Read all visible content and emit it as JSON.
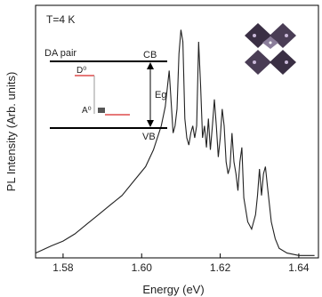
{
  "chart_data": {
    "type": "line",
    "xlabel": "Energy (eV)",
    "ylabel": "PL Intensity (Arb. units)",
    "xlim": [
      1.573,
      1.645
    ],
    "ylim": [
      0,
      1
    ],
    "x_ticks": [
      "1.58",
      "1.60",
      "1.62",
      "1.64"
    ],
    "x_tick_values": [
      1.58,
      1.6,
      1.62,
      1.64
    ],
    "grid": false,
    "series": [
      {
        "x": [
          1.573,
          1.577,
          1.58,
          1.583,
          1.586,
          1.589,
          1.592,
          1.595,
          1.598,
          1.601,
          1.603,
          1.605,
          1.606,
          1.607,
          1.608,
          1.6085,
          1.609,
          1.6095,
          1.61,
          1.6105,
          1.611,
          1.6115,
          1.612,
          1.6125,
          1.613,
          1.6135,
          1.614,
          1.6145,
          1.615,
          1.6155,
          1.616,
          1.6165,
          1.617,
          1.6175,
          1.618,
          1.6185,
          1.619,
          1.6195,
          1.62,
          1.6205,
          1.621,
          1.6215,
          1.622,
          1.6225,
          1.623,
          1.6235,
          1.624,
          1.6245,
          1.625,
          1.6255,
          1.626,
          1.627,
          1.628,
          1.629,
          1.6295,
          1.63,
          1.6305,
          1.631,
          1.6315,
          1.632,
          1.633,
          1.634,
          1.635,
          1.637,
          1.64,
          1.644
        ],
        "y": [
          0.02,
          0.05,
          0.07,
          0.1,
          0.14,
          0.18,
          0.22,
          0.26,
          0.32,
          0.38,
          0.45,
          0.55,
          0.63,
          0.78,
          0.52,
          0.55,
          0.62,
          0.85,
          0.95,
          0.9,
          0.58,
          0.5,
          0.47,
          0.52,
          0.55,
          0.5,
          0.55,
          0.9,
          0.72,
          0.5,
          0.55,
          0.46,
          0.58,
          0.45,
          0.55,
          0.66,
          0.55,
          0.42,
          0.5,
          0.62,
          0.55,
          0.4,
          0.35,
          0.38,
          0.52,
          0.4,
          0.35,
          0.28,
          0.4,
          0.46,
          0.25,
          0.15,
          0.12,
          0.18,
          0.26,
          0.37,
          0.26,
          0.35,
          0.38,
          0.3,
          0.15,
          0.08,
          0.04,
          0.02,
          0.01,
          0.01
        ]
      }
    ],
    "annotations": {
      "temperature": "T=4 K",
      "da_pair": "DA pair",
      "cb": "CB",
      "vb": "VB",
      "donor": "D⁰",
      "acceptor": "A⁰",
      "gap": "Eg"
    }
  },
  "colors": {
    "line": "#222222",
    "acceptor_level": "#d62728",
    "donor_level": "#d62728",
    "crystal_dark": "#3a2f44",
    "crystal_light": "#8a7d9a"
  },
  "icons": [
    "crystal-structure-icon"
  ]
}
